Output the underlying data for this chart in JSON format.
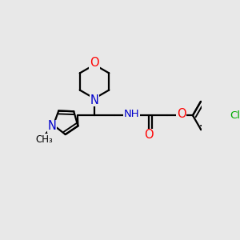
{
  "bg_color": "#e8e8e8",
  "bond_color": "#000000",
  "bond_width": 1.6,
  "atom_colors": {
    "O": "#ff0000",
    "N": "#0000cc",
    "Cl": "#00aa00",
    "C": "#000000"
  },
  "font_size": 9.5,
  "fig_size": [
    3.0,
    3.0
  ],
  "dpi": 100
}
